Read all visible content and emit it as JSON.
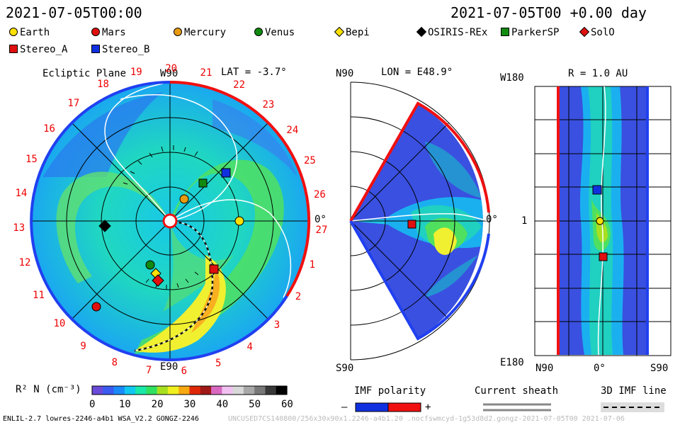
{
  "header": {
    "left_time": "2021-07-05T00:00",
    "right_time": "2021-07-05T00 +0.00 day"
  },
  "legend": {
    "row1": [
      {
        "name": "Earth",
        "marker": "circle",
        "color": "#ffe000"
      },
      {
        "name": "Mars",
        "marker": "circle",
        "color": "#e01010"
      },
      {
        "name": "Mercury",
        "marker": "circle",
        "color": "#e89a10"
      },
      {
        "name": "Venus",
        "marker": "circle",
        "color": "#108a10"
      },
      {
        "name": "Bepi",
        "marker": "diamond",
        "color": "#ffe000"
      },
      {
        "name": "OSIRIS-REx",
        "marker": "diamond",
        "color": "#000000"
      },
      {
        "name": "ParkerSP",
        "marker": "square",
        "color": "#108a10"
      },
      {
        "name": "SolO",
        "marker": "diamond",
        "color": "#e01010"
      }
    ],
    "row2": [
      {
        "name": "Stereo_A",
        "marker": "square",
        "color": "#e01010"
      },
      {
        "name": "Stereo_B",
        "marker": "square",
        "color": "#1030e0"
      }
    ]
  },
  "ecliptic": {
    "title": "Ecliptic Plane",
    "lat": "LAT = -3.7°",
    "top": "W90",
    "bottom": "E90",
    "right": "0°",
    "rotation_numbers": [
      "19",
      "20",
      "21",
      "22",
      "23",
      "24",
      "25",
      "26",
      "27",
      "1",
      "2",
      "3",
      "4",
      "5",
      "6",
      "7",
      "8",
      "9",
      "10",
      "11",
      "12",
      "13",
      "14",
      "15",
      "16",
      "17",
      "18"
    ]
  },
  "meridional": {
    "title": "LON = E48.9°",
    "top": "N90",
    "bottom": "S90",
    "right": "0°"
  },
  "radial": {
    "title": "R = 1.0 AU",
    "top": "W180",
    "bottom": "E180",
    "mid": "1",
    "x_left": "N90",
    "x_mid": "0°",
    "x_right": "S90"
  },
  "colorbar": {
    "label": "R² N (cm⁻³)",
    "ticks": [
      "0",
      "10",
      "20",
      "30",
      "40",
      "50",
      "60"
    ],
    "colors": [
      "#6a4ad8",
      "#3a5af0",
      "#1a8af8",
      "#10c8f0",
      "#18e8a8",
      "#30e060",
      "#a8e020",
      "#f0f020",
      "#f8a810",
      "#e02808",
      "#a01818",
      "#d868c0",
      "#f0c0f0",
      "#d8d8d8",
      "#a8a8a8",
      "#787878",
      "#383838",
      "#000000"
    ]
  },
  "imf_polarity": {
    "label": "IMF polarity",
    "minus": "–",
    "plus": "+"
  },
  "current_sheath": {
    "label": "Current sheath"
  },
  "imf_line": {
    "label": "3D IMF line"
  },
  "footer": {
    "left": "ENLIL-2.7 lowres-2246-a4b1 WSA_V2.2 GONGZ-2246",
    "right": "UNCUSED7CS140800/256x30x90x1.2246-a4b1.20 .nocfswmcyd-1g53d8d2.gongz-2021-07-05T00   2021-07-06"
  }
}
